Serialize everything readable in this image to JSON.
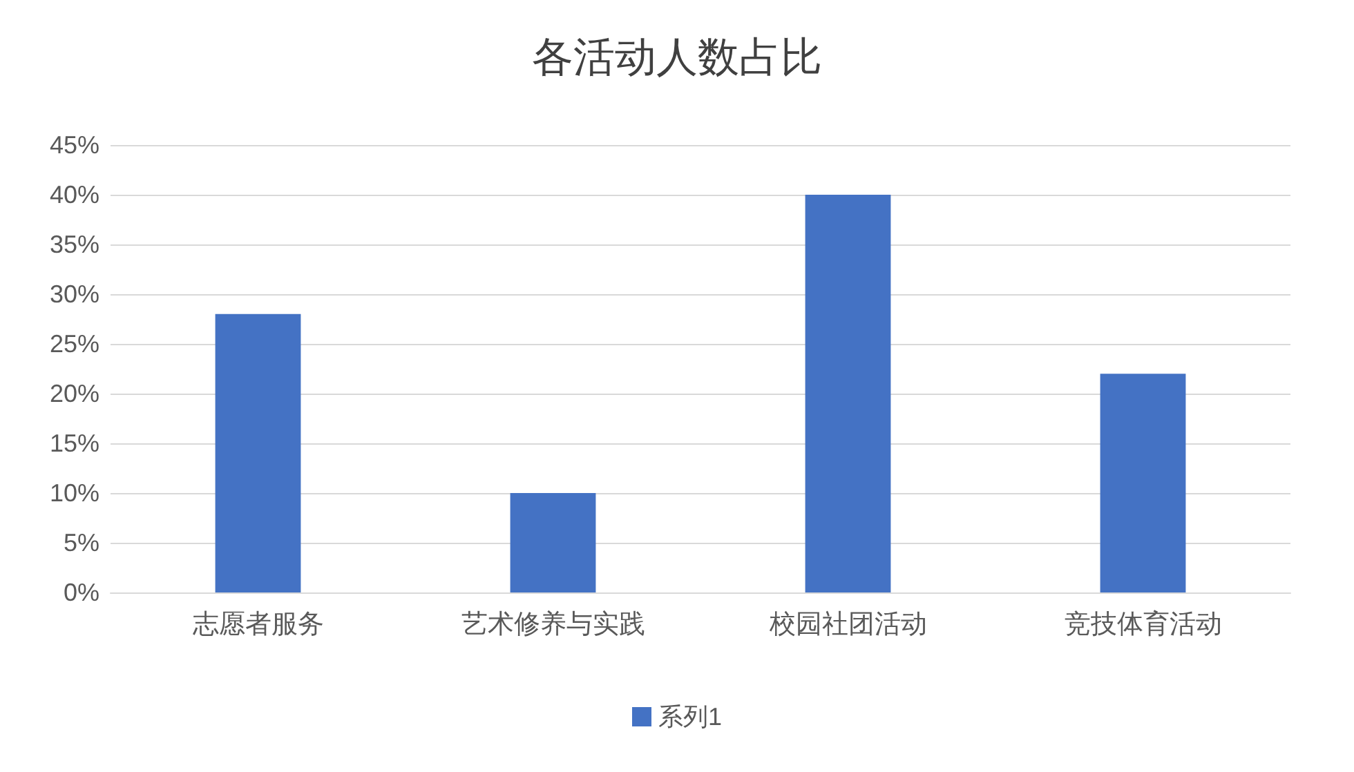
{
  "chart_data": {
    "type": "bar",
    "title": "各活动人数占比",
    "categories": [
      "志愿者服务",
      "艺术修养与实践",
      "校园社团活动",
      "竞技体育活动"
    ],
    "series": [
      {
        "name": "系列1",
        "color": "#4472c4",
        "values": [
          28,
          10,
          40,
          22
        ]
      }
    ],
    "ylim": [
      0,
      45
    ],
    "yticks": [
      {
        "value": 0,
        "label": "0%"
      },
      {
        "value": 5,
        "label": "5%"
      },
      {
        "value": 10,
        "label": "10%"
      },
      {
        "value": 15,
        "label": "15%"
      },
      {
        "value": 20,
        "label": "20%"
      },
      {
        "value": 25,
        "label": "25%"
      },
      {
        "value": 30,
        "label": "30%"
      },
      {
        "value": 35,
        "label": "35%"
      },
      {
        "value": 40,
        "label": "40%"
      },
      {
        "value": 45,
        "label": "45%"
      }
    ],
    "grid": "y",
    "legend": "bottom"
  }
}
